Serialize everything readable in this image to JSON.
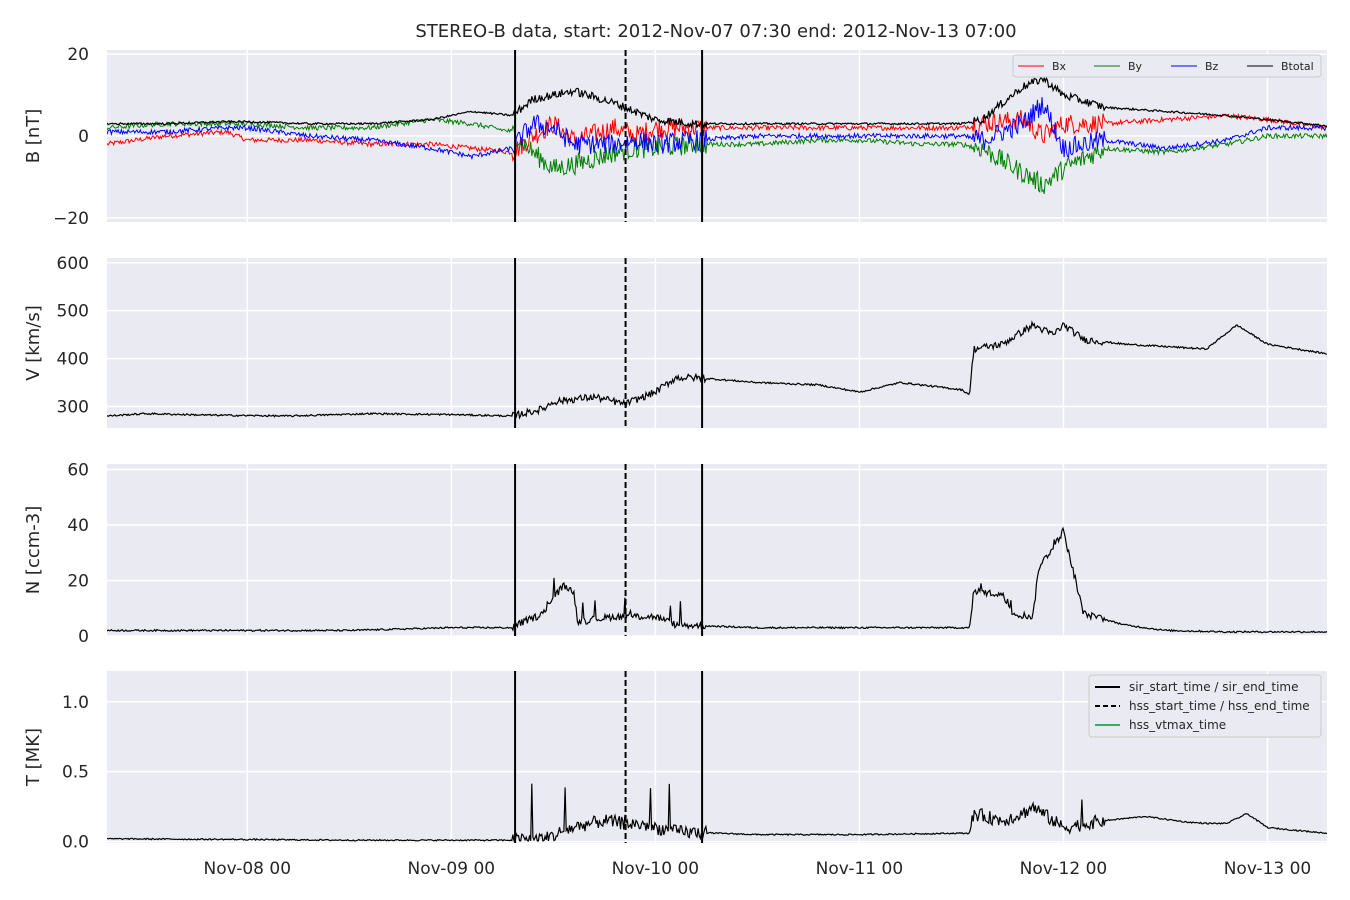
{
  "chart_data": {
    "type": "line",
    "title": "STEREO-B data, start: 2012-Nov-07 07:30  end: 2012-Nov-13 07:00",
    "x_tick_labels": [
      "Nov-08 00",
      "Nov-09 00",
      "Nov-10 00",
      "Nov-11 00",
      "Nov-12 00",
      "Nov-13 00"
    ],
    "x_range_days": [
      7.3125,
      13.2917
    ],
    "events": [
      {
        "name": "sir_start_time / sir_end_time",
        "style": "solid",
        "times_day": [
          9.3125,
          10.229
        ]
      },
      {
        "name": "hss_start_time / hss_end_time",
        "style": "dashed",
        "times_day": [
          9.854
        ]
      }
    ],
    "legend2": [
      {
        "name": "sir_start_time / sir_end_time",
        "color": "#000000",
        "dash": ""
      },
      {
        "name": "hss_start_time / hss_end_time",
        "color": "#000000",
        "dash": "5,3"
      },
      {
        "name": "hss_vtmax_time",
        "color": "#2fb35c",
        "dash": ""
      }
    ],
    "panels": [
      {
        "id": "B",
        "ylabel": "B [nT]",
        "ylim": [
          -21,
          21
        ],
        "yticks": [
          -20,
          0,
          20
        ],
        "ytick_labels": [
          "−20",
          "0",
          "20"
        ],
        "legend": [
          "Bx",
          "By",
          "Bz",
          "Btotal"
        ],
        "series": [
          {
            "name": "Bx",
            "color": "#ff0000",
            "noise": 1.0,
            "x": [
              7.31,
              7.6,
              7.9,
              8.0,
              8.3,
              8.6,
              8.9,
              9.1,
              9.3,
              9.4,
              9.5,
              9.6,
              9.8,
              9.9,
              10.0,
              10.2,
              10.5,
              10.8,
              11.0,
              11.3,
              11.5,
              11.6,
              11.8,
              11.9,
              12.0,
              12.2,
              12.5,
              12.8,
              13.0,
              13.29
            ],
            "y": [
              -2,
              0,
              1,
              -1,
              -1,
              -2,
              -2,
              -3,
              -4,
              0,
              3,
              -1,
              2,
              0,
              2,
              2,
              2,
              2,
              2,
              2,
              2,
              3,
              4,
              0,
              3,
              3,
              4,
              5,
              4,
              2
            ]
          },
          {
            "name": "By",
            "color": "#008000",
            "noise": 1.0,
            "x": [
              7.31,
              7.6,
              7.9,
              8.0,
              8.3,
              8.6,
              8.9,
              9.1,
              9.3,
              9.4,
              9.5,
              9.6,
              9.8,
              9.9,
              10.0,
              10.2,
              10.5,
              10.8,
              11.0,
              11.3,
              11.5,
              11.6,
              11.8,
              11.9,
              12.0,
              12.2,
              12.5,
              12.8,
              13.0,
              13.29
            ],
            "y": [
              2,
              3,
              3,
              3,
              2,
              2,
              4,
              3,
              1,
              -4,
              -8,
              -7,
              -4,
              -3,
              -3,
              -2,
              -2,
              -1,
              -1,
              -2,
              -2,
              -3,
              -9,
              -12,
              -8,
              -3,
              -4,
              -2,
              0,
              0
            ]
          },
          {
            "name": "Bz",
            "color": "#0000ff",
            "noise": 1.0,
            "x": [
              7.31,
              7.6,
              7.9,
              8.0,
              8.3,
              8.6,
              8.9,
              9.1,
              9.3,
              9.4,
              9.5,
              9.6,
              9.8,
              9.9,
              10.0,
              10.2,
              10.5,
              10.8,
              11.0,
              11.3,
              11.5,
              11.6,
              11.8,
              11.9,
              12.0,
              12.2,
              12.5,
              12.8,
              13.0,
              13.29
            ],
            "y": [
              1,
              1,
              2,
              2,
              0,
              -1,
              -3,
              -5,
              -3,
              3,
              2,
              -2,
              -2,
              -1,
              -2,
              -1,
              0,
              0,
              0,
              0,
              0,
              -1,
              3,
              8,
              -3,
              -1,
              -3,
              -1,
              2,
              2
            ]
          },
          {
            "name": "Btotal",
            "color": "#000000",
            "noise": 0.4,
            "x": [
              7.31,
              7.6,
              7.9,
              8.0,
              8.3,
              8.6,
              8.9,
              9.1,
              9.3,
              9.4,
              9.5,
              9.6,
              9.8,
              9.9,
              10.0,
              10.2,
              10.5,
              10.8,
              11.0,
              11.3,
              11.5,
              11.6,
              11.8,
              11.9,
              12.0,
              12.2,
              12.5,
              12.8,
              13.0,
              13.29
            ],
            "y": [
              3,
              3,
              3.5,
              3.5,
              3,
              3,
              4,
              6,
              5,
              9,
              10,
              11,
              8,
              6,
              4,
              3,
              3,
              3,
              3,
              3,
              3,
              4,
              12,
              14,
              10,
              7,
              6,
              5,
              4,
              2.5
            ]
          }
        ]
      },
      {
        "id": "V",
        "ylabel": "V [km/s]",
        "ylim": [
          255,
          610
        ],
        "yticks": [
          300,
          400,
          500,
          600
        ],
        "ytick_labels": [
          "300",
          "400",
          "500",
          "600"
        ],
        "series": [
          {
            "name": "V",
            "color": "#000000",
            "noise": 3,
            "x": [
              7.31,
              7.5,
              7.8,
              8.2,
              8.6,
              9.0,
              9.3,
              9.35,
              9.45,
              9.5,
              9.7,
              9.85,
              10.0,
              10.1,
              10.2,
              10.5,
              10.8,
              11.0,
              11.2,
              11.5,
              11.54,
              11.56,
              11.7,
              11.85,
              11.95,
              12.0,
              12.1,
              12.3,
              12.5,
              12.7,
              12.85,
              13.0,
              13.29
            ],
            "y": [
              280,
              285,
              282,
              280,
              285,
              283,
              280,
              285,
              295,
              310,
              320,
              305,
              330,
              360,
              360,
              350,
              345,
              330,
              350,
              335,
              325,
              420,
              430,
              470,
              450,
              470,
              440,
              430,
              425,
              420,
              470,
              430,
              410
            ]
          }
        ]
      },
      {
        "id": "N",
        "ylabel": "N [ccm-3]",
        "ylim": [
          0,
          62
        ],
        "yticks": [
          0,
          20,
          40,
          60
        ],
        "ytick_labels": [
          "0",
          "20",
          "40",
          "60"
        ],
        "series": [
          {
            "name": "N",
            "color": "#000000",
            "noise": 0.5,
            "x": [
              7.31,
              8.0,
              8.5,
              9.0,
              9.3,
              9.35,
              9.45,
              9.5,
              9.55,
              9.6,
              9.62,
              9.7,
              9.8,
              10.0,
              10.1,
              10.5,
              11.0,
              11.5,
              11.54,
              11.56,
              11.7,
              11.75,
              11.85,
              11.88,
              11.95,
              12.0,
              12.05,
              12.1,
              12.3,
              12.5,
              12.8,
              13.29
            ],
            "y": [
              2,
              2,
              2,
              3,
              3,
              5,
              8,
              14,
              18,
              16,
              5,
              6,
              7,
              7,
              4,
              3,
              3,
              3,
              3,
              16,
              15,
              8,
              7,
              25,
              32,
              38,
              22,
              8,
              4,
              2,
              1.5,
              1.5
            ]
          }
        ]
      },
      {
        "id": "T",
        "ylabel": "T [MK]",
        "ylim": [
          -0.01,
          1.22
        ],
        "yticks": [
          0.0,
          0.5,
          1.0
        ],
        "ytick_labels": [
          "0.0",
          "0.5",
          "1.0"
        ],
        "series": [
          {
            "name": "T",
            "color": "#000000",
            "noise": 0.008,
            "x": [
              7.31,
              8.0,
              8.5,
              9.0,
              9.3,
              9.45,
              9.5,
              9.55,
              9.65,
              9.75,
              9.85,
              9.95,
              10.0,
              10.1,
              10.5,
              11.0,
              11.5,
              11.54,
              11.56,
              11.7,
              11.8,
              11.85,
              12.0,
              12.2,
              12.4,
              12.6,
              12.7,
              12.8,
              12.9,
              13.0,
              13.29
            ],
            "y": [
              0.02,
              0.015,
              0.01,
              0.01,
              0.01,
              0.02,
              0.04,
              0.08,
              0.12,
              0.15,
              0.13,
              0.12,
              0.1,
              0.07,
              0.05,
              0.05,
              0.06,
              0.06,
              0.2,
              0.15,
              0.2,
              0.25,
              0.1,
              0.15,
              0.18,
              0.14,
              0.13,
              0.13,
              0.2,
              0.1,
              0.06
            ]
          }
        ]
      }
    ]
  }
}
